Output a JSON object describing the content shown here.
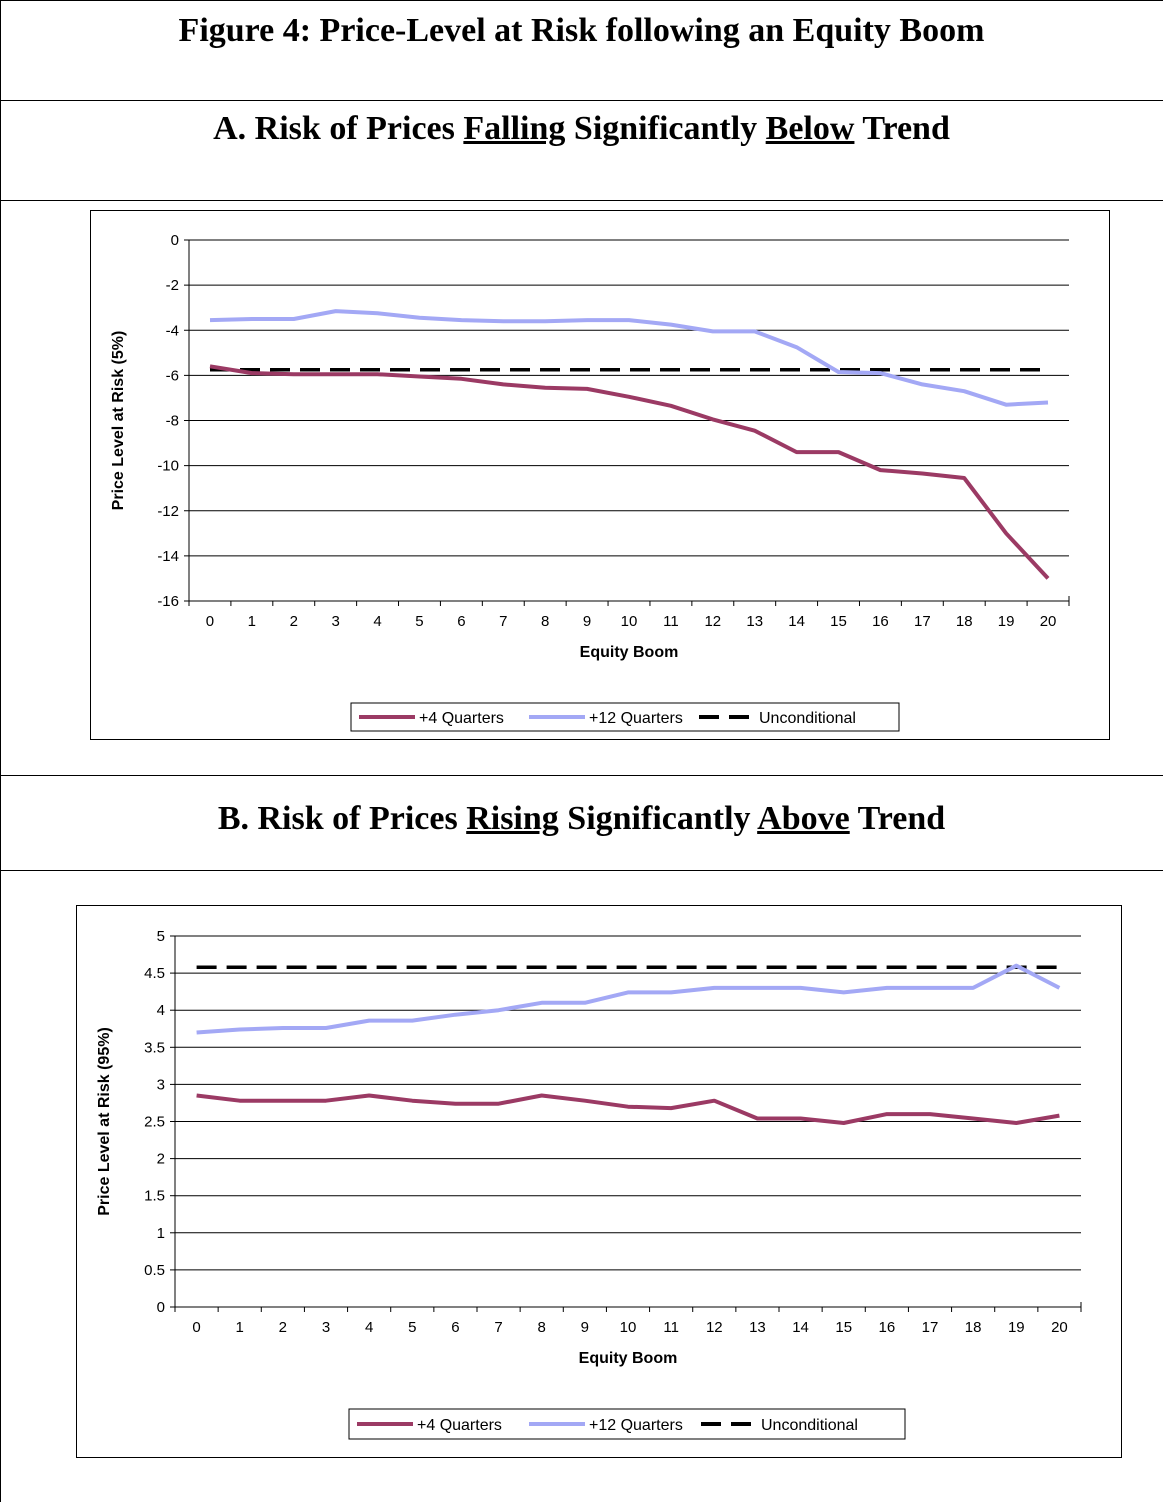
{
  "figure": {
    "title": "Figure 4: Price-Level at Risk following an Equity Boom"
  },
  "panel_a": {
    "title_parts": [
      "A. Risk of Prices ",
      "Falling",
      " Significantly ",
      "Below",
      " Trend"
    ]
  },
  "panel_b": {
    "title_parts": [
      "B. Risk of Prices ",
      "Rising",
      " Significantly ",
      "Above",
      " Trend"
    ]
  },
  "colors": {
    "four_quarters": "#9B3A64",
    "twelve_quarters": "#A3A8F5",
    "unconditional": "#000000"
  },
  "chart_data": [
    {
      "type": "line",
      "xlabel": "Equity Boom",
      "ylabel": "Price Level at Risk (5%)",
      "ylim": [
        -16,
        0
      ],
      "yticks": [
        0,
        -2,
        -4,
        -6,
        -8,
        -10,
        -12,
        -14,
        -16
      ],
      "x": [
        0,
        1,
        2,
        3,
        4,
        5,
        6,
        7,
        8,
        9,
        10,
        11,
        12,
        13,
        14,
        15,
        16,
        17,
        18,
        19,
        20
      ],
      "grid": "horizontal",
      "legend_position": "bottom",
      "series": [
        {
          "name": "+4 Quarters",
          "style": "solid",
          "values": [
            -5.6,
            -5.9,
            -5.95,
            -5.95,
            -5.95,
            -6.05,
            -6.15,
            -6.4,
            -6.55,
            -6.6,
            -6.95,
            -7.35,
            -7.95,
            -8.45,
            -9.4,
            -9.4,
            -10.2,
            -10.35,
            -10.55,
            -13,
            -15
          ]
        },
        {
          "name": "+12 Quarters",
          "style": "solid",
          "values": [
            -3.55,
            -3.5,
            -3.5,
            -3.15,
            -3.25,
            -3.45,
            -3.55,
            -3.6,
            -3.6,
            -3.55,
            -3.55,
            -3.75,
            -4.05,
            -4.05,
            -4.75,
            -5.85,
            -5.9,
            -6.4,
            -6.7,
            -7.3,
            -7.2
          ]
        },
        {
          "name": "Unconditional",
          "style": "dashed",
          "values": [
            -5.75,
            -5.75,
            -5.75,
            -5.75,
            -5.75,
            -5.75,
            -5.75,
            -5.75,
            -5.75,
            -5.75,
            -5.75,
            -5.75,
            -5.75,
            -5.75,
            -5.75,
            -5.75,
            -5.75,
            -5.75,
            -5.75,
            -5.75,
            -5.75
          ]
        }
      ]
    },
    {
      "type": "line",
      "xlabel": "Equity Boom",
      "ylabel": "Price Level at Risk (95%)",
      "ylim": [
        0,
        5
      ],
      "yticks": [
        5,
        4.5,
        4,
        3.5,
        3,
        2.5,
        2,
        1.5,
        1,
        0.5,
        0
      ],
      "x": [
        0,
        1,
        2,
        3,
        4,
        5,
        6,
        7,
        8,
        9,
        10,
        11,
        12,
        13,
        14,
        15,
        16,
        17,
        18,
        19,
        20
      ],
      "grid": "horizontal",
      "legend_position": "bottom",
      "series": [
        {
          "name": "+4 Quarters",
          "style": "solid",
          "values": [
            2.85,
            2.78,
            2.78,
            2.78,
            2.85,
            2.78,
            2.74,
            2.74,
            2.85,
            2.78,
            2.7,
            2.68,
            2.78,
            2.54,
            2.54,
            2.48,
            2.6,
            2.6,
            2.54,
            2.48,
            2.58
          ]
        },
        {
          "name": "+12 Quarters",
          "style": "solid",
          "values": [
            3.7,
            3.74,
            3.76,
            3.76,
            3.86,
            3.86,
            3.94,
            4.0,
            4.1,
            4.1,
            4.24,
            4.24,
            4.3,
            4.3,
            4.3,
            4.24,
            4.3,
            4.3,
            4.3,
            4.6,
            4.3
          ]
        },
        {
          "name": "Unconditional",
          "style": "dashed",
          "values": [
            4.58,
            4.58,
            4.58,
            4.58,
            4.58,
            4.58,
            4.58,
            4.58,
            4.58,
            4.58,
            4.58,
            4.58,
            4.58,
            4.58,
            4.58,
            4.58,
            4.58,
            4.58,
            4.58,
            4.58,
            4.58
          ]
        }
      ]
    }
  ]
}
